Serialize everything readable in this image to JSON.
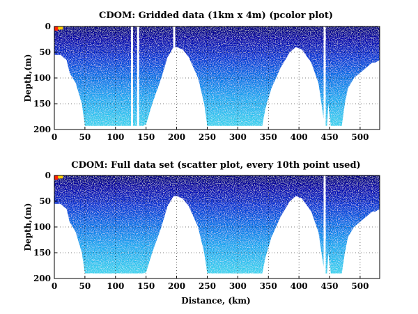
{
  "chart_data": [
    {
      "type": "heatmap",
      "title": "CDOM: Gridded data (1km x 4m) (pcolor plot)",
      "xlabel": "",
      "ylabel": "Depth,(m)",
      "xlim": [
        0,
        532
      ],
      "ylim": [
        0,
        200
      ],
      "y_reversed": true,
      "xticks": [
        0,
        50,
        100,
        150,
        200,
        250,
        300,
        350,
        400,
        450,
        500
      ],
      "yticks": [
        0,
        50,
        100,
        150,
        200
      ],
      "grid": true,
      "colormap": "jet",
      "profile_max_depth": {
        "distance_km": [
          0,
          10,
          20,
          25,
          35,
          45,
          50,
          60,
          80,
          100,
          120,
          130,
          145,
          150,
          160,
          175,
          185,
          195,
          200,
          210,
          220,
          235,
          245,
          250,
          260,
          300,
          340,
          345,
          355,
          370,
          385,
          395,
          405,
          420,
          432,
          438,
          442,
          446,
          448,
          452,
          458,
          470,
          475,
          480,
          490,
          500,
          510,
          520,
          525,
          532
        ],
        "depth_m": [
          55,
          55,
          65,
          90,
          110,
          150,
          193,
          193,
          193,
          193,
          193,
          193,
          193,
          190,
          150,
          100,
          60,
          40,
          40,
          45,
          60,
          100,
          150,
          193,
          193,
          193,
          193,
          160,
          120,
          80,
          50,
          40,
          45,
          70,
          110,
          160,
          193,
          193,
          150,
          193,
          193,
          193,
          150,
          120,
          100,
          90,
          80,
          70,
          70,
          65
        ]
      },
      "gaps_km": [
        127,
        137,
        196,
        442
      ]
    },
    {
      "type": "scatter",
      "title": "CDOM: Full data set (scatter plot, every 10th point used)",
      "xlabel": "Distance, (km)",
      "ylabel": "Depth,(m)",
      "xlim": [
        0,
        532
      ],
      "ylim": [
        0,
        200
      ],
      "y_reversed": true,
      "xticks": [
        0,
        50,
        100,
        150,
        200,
        250,
        300,
        350,
        400,
        450,
        500
      ],
      "yticks": [
        0,
        50,
        100,
        150,
        200
      ],
      "grid": true,
      "colormap": "jet",
      "profile_max_depth": {
        "distance_km": [
          0,
          10,
          20,
          25,
          35,
          45,
          50,
          60,
          80,
          100,
          120,
          130,
          145,
          150,
          160,
          175,
          185,
          195,
          200,
          210,
          220,
          235,
          245,
          250,
          260,
          300,
          340,
          345,
          355,
          370,
          385,
          395,
          405,
          420,
          432,
          438,
          442,
          446,
          448,
          452,
          458,
          470,
          475,
          480,
          490,
          500,
          510,
          520,
          525,
          532
        ],
        "depth_m": [
          55,
          55,
          65,
          90,
          110,
          150,
          190,
          190,
          190,
          190,
          190,
          190,
          190,
          188,
          150,
          100,
          60,
          40,
          40,
          45,
          60,
          100,
          150,
          190,
          190,
          190,
          190,
          160,
          120,
          80,
          50,
          40,
          45,
          70,
          110,
          160,
          190,
          190,
          150,
          190,
          190,
          190,
          150,
          120,
          100,
          90,
          80,
          70,
          70,
          65
        ]
      },
      "gaps_km": [
        442
      ]
    }
  ]
}
